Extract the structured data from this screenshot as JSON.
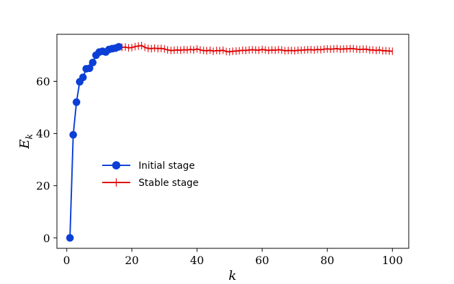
{
  "chart_data": {
    "type": "line",
    "xlabel": "k",
    "ylabel": "E_k",
    "ylabel_main": "E",
    "ylabel_sub": "k",
    "xlim": [
      -3,
      105
    ],
    "ylim": [
      -4,
      78
    ],
    "xticks": [
      0,
      20,
      40,
      60,
      80,
      100
    ],
    "yticks": [
      0,
      20,
      40,
      60
    ],
    "legend_position": "center-left",
    "series": [
      {
        "name": "Initial stage",
        "color": "#0b3fd6",
        "marker": "circle",
        "x": [
          1,
          2,
          3,
          4,
          5,
          6,
          7,
          8,
          9,
          10,
          11,
          12,
          13,
          14,
          15,
          16
        ],
        "y": [
          0,
          39.5,
          52,
          59.8,
          61.5,
          64.8,
          65,
          67.2,
          70,
          71.2,
          71.5,
          71.2,
          72.2,
          72.5,
          72.7,
          73.2
        ]
      },
      {
        "name": "Stable stage",
        "color": "#e00000",
        "marker": "plus",
        "x": [
          16,
          17,
          18,
          19,
          20,
          21,
          22,
          23,
          24,
          25,
          26,
          27,
          28,
          29,
          30,
          31,
          32,
          33,
          34,
          35,
          36,
          37,
          38,
          39,
          40,
          41,
          42,
          43,
          44,
          45,
          46,
          47,
          48,
          49,
          50,
          51,
          52,
          53,
          54,
          55,
          56,
          57,
          58,
          59,
          60,
          61,
          62,
          63,
          64,
          65,
          66,
          67,
          68,
          69,
          70,
          71,
          72,
          73,
          74,
          75,
          76,
          77,
          78,
          79,
          80,
          81,
          82,
          83,
          84,
          85,
          86,
          87,
          88,
          89,
          90,
          91,
          92,
          93,
          94,
          95,
          96,
          97,
          98,
          99,
          100
        ],
        "y": [
          73.2,
          73.0,
          73.1,
          72.8,
          72.9,
          73.3,
          73.5,
          73.7,
          73.0,
          72.6,
          72.5,
          72.7,
          72.5,
          72.6,
          72.4,
          72.0,
          71.8,
          71.9,
          72.0,
          71.9,
          72.1,
          72.0,
          72.2,
          72.0,
          72.4,
          72.0,
          71.8,
          71.7,
          71.9,
          71.5,
          71.8,
          71.7,
          71.9,
          71.4,
          71.3,
          71.5,
          71.6,
          71.7,
          71.9,
          71.8,
          72.0,
          72.1,
          72.0,
          71.9,
          72.2,
          72.0,
          71.8,
          72.0,
          71.9,
          72.1,
          72.0,
          71.7,
          71.8,
          71.8,
          71.7,
          71.9,
          71.9,
          72.0,
          72.1,
          72.1,
          72.0,
          72.2,
          72.1,
          72.3,
          72.4,
          72.3,
          72.4,
          72.5,
          72.3,
          72.4,
          72.4,
          72.5,
          72.5,
          72.3,
          72.2,
          72.3,
          72.3,
          72.0,
          72.0,
          71.8,
          72.0,
          71.7,
          71.7,
          71.6,
          71.5
        ]
      }
    ]
  }
}
